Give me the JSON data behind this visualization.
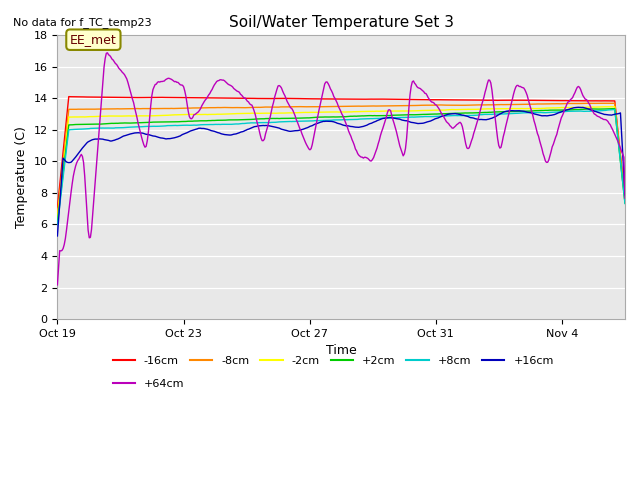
{
  "title": "Soil/Water Temperature Set 3",
  "no_data_label": "No data for f_TC_temp23",
  "xlabel": "Time",
  "ylabel": "Temperature (C)",
  "ylim": [
    0,
    18
  ],
  "yticks": [
    0,
    2,
    4,
    6,
    8,
    10,
    12,
    14,
    16,
    18
  ],
  "background_color": "#ffffff",
  "plot_bg_color": "#e8e8e8",
  "legend_entries": [
    {
      "label": "-16cm",
      "color": "#ff0000"
    },
    {
      "label": "-8cm",
      "color": "#ff8800"
    },
    {
      "label": "-2cm",
      "color": "#ffff00"
    },
    {
      "label": "+2cm",
      "color": "#00cc00"
    },
    {
      "label": "+8cm",
      "color": "#00cccc"
    },
    {
      "label": "+16cm",
      "color": "#0000bb"
    },
    {
      "label": "+64cm",
      "color": "#bb00bb"
    }
  ],
  "annotation_box": {
    "text": "EE_met"
  },
  "xtick_labels": [
    "Oct 19",
    "Oct 23",
    "Oct 27",
    "Oct 31",
    "Nov 4"
  ],
  "xtick_positions": [
    0,
    4,
    8,
    12,
    16
  ],
  "xlim": [
    0,
    18
  ]
}
